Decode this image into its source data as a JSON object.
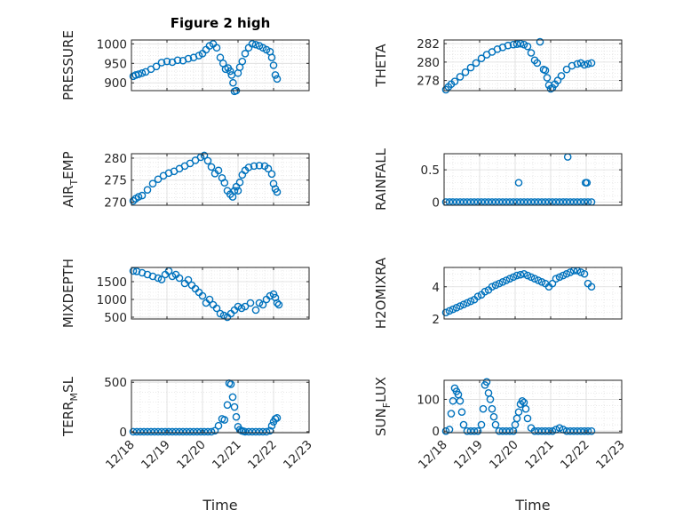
{
  "chart_data": [
    {
      "type": "scatter",
      "title": "Figure 2 high",
      "ylabel": "PRESSURE",
      "xlabel": "",
      "xlim": [
        0,
        5
      ],
      "ylim": [
        880,
        1010
      ],
      "yticks": [
        {
          "v": 900,
          "label": "900"
        },
        {
          "v": 950,
          "label": "950"
        },
        {
          "v": 1000,
          "label": "1000"
        }
      ],
      "xticks": [
        {
          "v": 0,
          "label": "12/18"
        },
        {
          "v": 1,
          "label": "12/19"
        },
        {
          "v": 2,
          "label": "12/20"
        },
        {
          "v": 3,
          "label": "12/21"
        },
        {
          "v": 4,
          "label": "12/22"
        },
        {
          "v": 5,
          "label": "12/23"
        }
      ],
      "show_xtick_labels": false,
      "grid": true,
      "color": "#0072BD",
      "x": [
        0.05,
        0.12,
        0.2,
        0.3,
        0.4,
        0.55,
        0.7,
        0.85,
        1.0,
        1.15,
        1.3,
        1.45,
        1.6,
        1.75,
        1.9,
        2.0,
        2.1,
        2.2,
        2.3,
        2.4,
        2.5,
        2.58,
        2.65,
        2.72,
        2.78,
        2.82,
        2.86,
        2.9,
        2.95,
        3.0,
        3.05,
        3.12,
        3.2,
        3.3,
        3.4,
        3.5,
        3.6,
        3.7,
        3.8,
        3.9,
        3.95,
        4.0,
        4.05,
        4.1
      ],
      "y": [
        917,
        920,
        922,
        925,
        928,
        935,
        942,
        952,
        955,
        953,
        958,
        957,
        962,
        965,
        970,
        975,
        985,
        995,
        1000,
        990,
        965,
        950,
        935,
        938,
        930,
        920,
        900,
        878,
        880,
        925,
        940,
        955,
        975,
        990,
        1000,
        998,
        995,
        990,
        985,
        980,
        965,
        945,
        920,
        910
      ]
    },
    {
      "type": "scatter",
      "ylabel": "THETA",
      "xlabel": "",
      "xlim": [
        0,
        5
      ],
      "ylim": [
        276.9,
        282.4
      ],
      "yticks": [
        {
          "v": 278,
          "label": "278"
        },
        {
          "v": 280,
          "label": "280"
        },
        {
          "v": 282,
          "label": "282"
        }
      ],
      "xticks": [
        {
          "v": 0,
          "label": "12/18"
        },
        {
          "v": 1,
          "label": "12/19"
        },
        {
          "v": 2,
          "label": "12/20"
        },
        {
          "v": 3,
          "label": "12/21"
        },
        {
          "v": 4,
          "label": "12/22"
        },
        {
          "v": 5,
          "label": "12/23"
        }
      ],
      "show_xtick_labels": false,
      "grid": true,
      "color": "#0072BD",
      "x": [
        0.05,
        0.12,
        0.2,
        0.3,
        0.45,
        0.6,
        0.75,
        0.9,
        1.05,
        1.2,
        1.35,
        1.5,
        1.65,
        1.8,
        1.95,
        2.05,
        2.15,
        2.25,
        2.35,
        2.45,
        2.55,
        2.62,
        2.7,
        2.8,
        2.85,
        2.9,
        2.95,
        3.0,
        3.05,
        3.12,
        3.2,
        3.3,
        3.45,
        3.6,
        3.75,
        3.85,
        3.95,
        4.05,
        4.15
      ],
      "y": [
        277.0,
        277.3,
        277.6,
        277.9,
        278.4,
        278.9,
        279.4,
        279.9,
        280.4,
        280.8,
        281.1,
        281.4,
        281.6,
        281.8,
        281.9,
        281.95,
        282.0,
        281.9,
        281.7,
        281.0,
        280.2,
        279.9,
        282.2,
        279.2,
        279.1,
        278.3,
        277.5,
        277.1,
        277.2,
        277.6,
        278.0,
        278.5,
        279.2,
        279.6,
        279.8,
        279.9,
        279.7,
        279.8,
        279.9
      ]
    },
    {
      "type": "scatter",
      "ylabel": "AIR_TEMP",
      "ylabel_parts": {
        "base": "AIR",
        "sub": "T",
        "rest": "EMP"
      },
      "xlabel": "",
      "xlim": [
        0,
        5
      ],
      "ylim": [
        269.3,
        281
      ],
      "yticks": [
        {
          "v": 270,
          "label": "270"
        },
        {
          "v": 275,
          "label": "275"
        },
        {
          "v": 280,
          "label": "280"
        }
      ],
      "xticks": [
        {
          "v": 0,
          "label": "12/18"
        },
        {
          "v": 1,
          "label": "12/19"
        },
        {
          "v": 2,
          "label": "12/20"
        },
        {
          "v": 3,
          "label": "12/21"
        },
        {
          "v": 4,
          "label": "12/22"
        },
        {
          "v": 5,
          "label": "12/23"
        }
      ],
      "show_xtick_labels": false,
      "grid": true,
      "color": "#0072BD",
      "x": [
        0.05,
        0.12,
        0.2,
        0.3,
        0.45,
        0.6,
        0.75,
        0.9,
        1.05,
        1.2,
        1.35,
        1.5,
        1.65,
        1.8,
        1.95,
        2.05,
        2.15,
        2.25,
        2.35,
        2.45,
        2.55,
        2.62,
        2.7,
        2.78,
        2.85,
        2.9,
        2.95,
        3.0,
        3.05,
        3.12,
        3.2,
        3.3,
        3.45,
        3.6,
        3.75,
        3.85,
        3.95,
        4.0,
        4.05,
        4.1
      ],
      "y": [
        270.3,
        270.8,
        271.2,
        271.5,
        272.8,
        274.2,
        275.2,
        276.0,
        276.6,
        277.0,
        277.6,
        278.2,
        278.8,
        279.5,
        280.2,
        280.6,
        279.4,
        278.0,
        276.5,
        277.2,
        275.5,
        274.4,
        272.6,
        271.8,
        271.2,
        272.6,
        273.5,
        272.6,
        274.5,
        276.2,
        277.2,
        277.9,
        278.2,
        278.3,
        278.2,
        277.6,
        276.4,
        274.2,
        273.0,
        272.3
      ]
    },
    {
      "type": "scatter",
      "ylabel": "RAINFALL",
      "xlabel": "",
      "xlim": [
        0,
        5
      ],
      "ylim": [
        -0.05,
        0.75
      ],
      "yticks": [
        {
          "v": 0,
          "label": "0"
        },
        {
          "v": 0.5,
          "label": "0.5"
        }
      ],
      "xticks": [
        {
          "v": 0,
          "label": "12/18"
        },
        {
          "v": 1,
          "label": "12/19"
        },
        {
          "v": 2,
          "label": "12/20"
        },
        {
          "v": 3,
          "label": "12/21"
        },
        {
          "v": 4,
          "label": "12/22"
        },
        {
          "v": 5,
          "label": "12/23"
        }
      ],
      "show_xtick_labels": false,
      "grid": true,
      "color": "#0072BD",
      "x": [
        0.05,
        0.15,
        0.25,
        0.35,
        0.45,
        0.55,
        0.65,
        0.75,
        0.85,
        0.95,
        1.05,
        1.15,
        1.25,
        1.35,
        1.45,
        1.55,
        1.65,
        1.75,
        1.85,
        1.95,
        2.05,
        2.15,
        2.25,
        2.35,
        2.45,
        2.55,
        2.65,
        2.75,
        2.85,
        2.95,
        3.05,
        3.15,
        3.25,
        3.35,
        3.45,
        3.55,
        3.65,
        3.75,
        3.85,
        3.95,
        4.05,
        4.15,
        2.1,
        3.48,
        3.98,
        4.02
      ],
      "y": [
        0,
        0,
        0,
        0,
        0,
        0,
        0,
        0,
        0,
        0,
        0,
        0,
        0,
        0,
        0,
        0,
        0,
        0,
        0,
        0,
        0,
        0,
        0,
        0,
        0,
        0,
        0,
        0,
        0,
        0,
        0,
        0,
        0,
        0,
        0,
        0,
        0,
        0,
        0,
        0,
        0,
        0,
        0.3,
        0.7,
        0.3,
        0.3
      ]
    },
    {
      "type": "scatter",
      "ylabel": "MIXDEPTH",
      "xlabel": "",
      "xlim": [
        0,
        5
      ],
      "ylim": [
        450,
        1900
      ],
      "yticks": [
        {
          "v": 500,
          "label": "500"
        },
        {
          "v": 1000,
          "label": "1000"
        },
        {
          "v": 1500,
          "label": "1500"
        }
      ],
      "xticks": [
        {
          "v": 0,
          "label": "12/18"
        },
        {
          "v": 1,
          "label": "12/19"
        },
        {
          "v": 2,
          "label": "12/20"
        },
        {
          "v": 3,
          "label": "12/21"
        },
        {
          "v": 4,
          "label": "12/22"
        },
        {
          "v": 5,
          "label": "12/23"
        }
      ],
      "show_xtick_labels": false,
      "grid": true,
      "color": "#0072BD",
      "x": [
        0.05,
        0.15,
        0.3,
        0.45,
        0.6,
        0.75,
        0.85,
        0.95,
        1.05,
        1.15,
        1.25,
        1.35,
        1.5,
        1.6,
        1.7,
        1.8,
        1.9,
        2.0,
        2.1,
        2.2,
        2.3,
        2.4,
        2.5,
        2.6,
        2.7,
        2.8,
        2.9,
        3.0,
        3.1,
        3.2,
        3.35,
        3.5,
        3.6,
        3.7,
        3.8,
        3.9,
        4.0,
        4.05,
        4.1,
        4.15
      ],
      "y": [
        1800,
        1790,
        1750,
        1700,
        1650,
        1600,
        1560,
        1700,
        1800,
        1650,
        1700,
        1600,
        1450,
        1550,
        1400,
        1300,
        1200,
        1100,
        900,
        1000,
        850,
        750,
        600,
        550,
        500,
        600,
        700,
        800,
        750,
        800,
        900,
        700,
        900,
        850,
        1000,
        1100,
        1150,
        1050,
        900,
        850
      ]
    },
    {
      "type": "scatter",
      "ylabel": "H2OMIXRA",
      "xlabel": "",
      "xlim": [
        0,
        5
      ],
      "ylim": [
        2,
        5.2
      ],
      "yticks": [
        {
          "v": 2,
          "label": "2"
        },
        {
          "v": 4,
          "label": "4"
        }
      ],
      "xticks": [
        {
          "v": 0,
          "label": "12/18"
        },
        {
          "v": 1,
          "label": "12/19"
        },
        {
          "v": 2,
          "label": "12/20"
        },
        {
          "v": 3,
          "label": "12/21"
        },
        {
          "v": 4,
          "label": "12/22"
        },
        {
          "v": 5,
          "label": "12/23"
        }
      ],
      "show_xtick_labels": false,
      "grid": true,
      "color": "#0072BD",
      "x": [
        0.05,
        0.15,
        0.25,
        0.35,
        0.45,
        0.55,
        0.65,
        0.75,
        0.85,
        0.95,
        1.05,
        1.15,
        1.25,
        1.35,
        1.45,
        1.55,
        1.65,
        1.75,
        1.85,
        1.95,
        2.05,
        2.15,
        2.25,
        2.35,
        2.45,
        2.55,
        2.65,
        2.75,
        2.85,
        2.95,
        3.05,
        3.15,
        3.25,
        3.35,
        3.45,
        3.55,
        3.65,
        3.75,
        3.85,
        3.95,
        4.05,
        4.15
      ],
      "y": [
        2.4,
        2.5,
        2.6,
        2.7,
        2.8,
        2.9,
        3.0,
        3.1,
        3.2,
        3.4,
        3.5,
        3.7,
        3.8,
        4.0,
        4.1,
        4.2,
        4.3,
        4.4,
        4.5,
        4.6,
        4.7,
        4.75,
        4.8,
        4.7,
        4.6,
        4.5,
        4.4,
        4.3,
        4.2,
        4.0,
        4.2,
        4.5,
        4.6,
        4.7,
        4.8,
        4.9,
        5.0,
        5.0,
        4.9,
        4.8,
        4.2,
        4.0
      ]
    },
    {
      "type": "scatter",
      "ylabel": "TERR_MSL",
      "ylabel_parts": {
        "base": "TERR",
        "sub": "M",
        "rest": "SL"
      },
      "xlabel": "Time",
      "xlim": [
        0,
        5
      ],
      "ylim": [
        -10,
        520
      ],
      "yticks": [
        {
          "v": 0,
          "label": "0"
        },
        {
          "v": 500,
          "label": "500"
        }
      ],
      "xticks": [
        {
          "v": 0,
          "label": "12/18"
        },
        {
          "v": 1,
          "label": "12/19"
        },
        {
          "v": 2,
          "label": "12/20"
        },
        {
          "v": 3,
          "label": "12/21"
        },
        {
          "v": 4,
          "label": "12/22"
        },
        {
          "v": 5,
          "label": "12/23"
        }
      ],
      "show_xtick_labels": true,
      "grid": true,
      "color": "#0072BD",
      "x": [
        0.05,
        0.15,
        0.25,
        0.35,
        0.45,
        0.55,
        0.65,
        0.75,
        0.85,
        0.95,
        1.05,
        1.15,
        1.25,
        1.35,
        1.45,
        1.55,
        1.65,
        1.75,
        1.85,
        1.95,
        2.05,
        2.15,
        2.25,
        2.35,
        2.45,
        2.55,
        2.62,
        2.7,
        2.75,
        2.8,
        2.85,
        2.9,
        2.95,
        3.0,
        3.05,
        3.1,
        3.15,
        3.2,
        3.3,
        3.4,
        3.5,
        3.6,
        3.7,
        3.8,
        3.9,
        3.95,
        4.0,
        4.05,
        4.1
      ],
      "y": [
        0,
        0,
        0,
        0,
        0,
        0,
        0,
        0,
        0,
        0,
        0,
        0,
        0,
        0,
        0,
        0,
        0,
        0,
        0,
        0,
        0,
        0,
        0,
        10,
        60,
        130,
        120,
        270,
        490,
        480,
        350,
        250,
        150,
        50,
        20,
        10,
        5,
        0,
        0,
        0,
        0,
        0,
        0,
        0,
        10,
        60,
        100,
        130,
        140
      ]
    },
    {
      "type": "scatter",
      "ylabel": "SUN_FLUX",
      "ylabel_parts": {
        "base": "SUN",
        "sub": "F",
        "rest": "LUX"
      },
      "xlabel": "Time",
      "xlim": [
        0,
        5
      ],
      "ylim": [
        -5,
        160
      ],
      "yticks": [
        {
          "v": 0,
          "label": "0"
        },
        {
          "v": 100,
          "label": "100"
        }
      ],
      "xticks": [
        {
          "v": 0,
          "label": "12/18"
        },
        {
          "v": 1,
          "label": "12/19"
        },
        {
          "v": 2,
          "label": "12/20"
        },
        {
          "v": 3,
          "label": "12/21"
        },
        {
          "v": 4,
          "label": "12/22"
        },
        {
          "v": 5,
          "label": "12/23"
        }
      ],
      "show_xtick_labels": true,
      "grid": true,
      "color": "#0072BD",
      "x": [
        0.05,
        0.15,
        0.2,
        0.25,
        0.3,
        0.35,
        0.4,
        0.45,
        0.5,
        0.55,
        0.65,
        0.75,
        0.85,
        0.95,
        1.05,
        1.1,
        1.15,
        1.2,
        1.25,
        1.3,
        1.35,
        1.4,
        1.45,
        1.55,
        1.65,
        1.75,
        1.85,
        1.95,
        2.0,
        2.05,
        2.1,
        2.15,
        2.2,
        2.25,
        2.3,
        2.35,
        2.45,
        2.55,
        2.65,
        2.75,
        2.85,
        2.95,
        3.05,
        3.15,
        3.25,
        3.35,
        3.45,
        3.55,
        3.65,
        3.75,
        3.85,
        3.95,
        4.05,
        4.15
      ],
      "y": [
        0,
        5,
        55,
        95,
        135,
        125,
        115,
        95,
        60,
        20,
        0,
        0,
        0,
        0,
        20,
        70,
        145,
        155,
        120,
        100,
        70,
        45,
        20,
        0,
        0,
        0,
        0,
        0,
        20,
        40,
        60,
        85,
        95,
        90,
        70,
        40,
        10,
        0,
        0,
        0,
        0,
        0,
        0,
        5,
        10,
        5,
        0,
        0,
        0,
        0,
        0,
        0,
        0,
        0
      ]
    }
  ]
}
